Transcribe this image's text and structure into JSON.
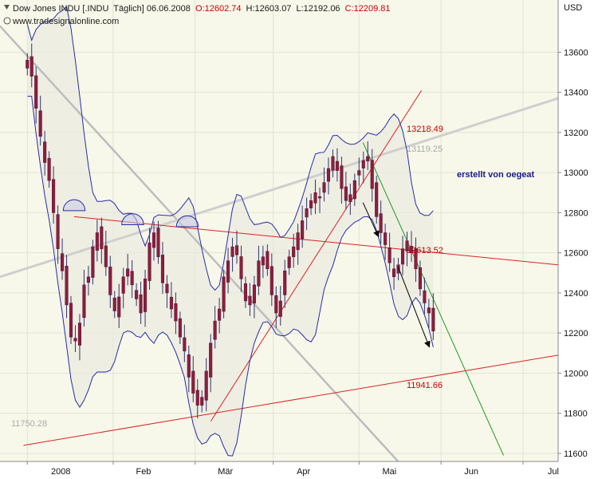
{
  "header": {
    "instrument": "Dow Jones INDU [.INDU",
    "period": "Täglich] 06.06.2008",
    "open": "O:12602.74",
    "high": "H:12603.07",
    "low": "L:12192.06",
    "close": "C:12209.81",
    "website": "www.tradesignalonline.com",
    "open_color": "#cc0000",
    "close_color": "#cc0000"
  },
  "annotation_text": "erstellt von oegeat",
  "annotation_color": "#1a1a8c",
  "chart_data": {
    "type": "candlestick",
    "y_unit": "USD",
    "ylim": [
      11560,
      13860
    ],
    "y_ticks": [
      11600,
      11800,
      12000,
      12200,
      12400,
      12600,
      12800,
      13000,
      13200,
      13400,
      13600
    ],
    "x_months": [
      {
        "label": "2008",
        "day": 0
      },
      {
        "label": "Feb",
        "day": 22
      },
      {
        "label": "Mär",
        "day": 43
      },
      {
        "label": "Apr",
        "day": 63
      },
      {
        "label": "Mai",
        "day": 85
      },
      {
        "label": "Jun",
        "day": 106
      },
      {
        "label": "Jul",
        "day": 127
      }
    ],
    "x_range_days": [
      -7,
      136
    ],
    "price_labels": [
      {
        "text": "13218.49",
        "value": 13218.49,
        "color": "#cc0000"
      },
      {
        "text": "13119.25",
        "value": 13119.25,
        "color": "#aaaaaa"
      },
      {
        "text": "12613.52",
        "value": 12613.52,
        "color": "#cc0000"
      },
      {
        "text": "11941.66",
        "value": 11941.66,
        "color": "#cc0000"
      },
      {
        "text": "11750.28",
        "value": 11750.28,
        "color": "#aaaaaa"
      }
    ],
    "closes": [
      13560,
      13480,
      13320,
      13180,
      13050,
      12960,
      12800,
      12620,
      12510,
      12340,
      12180,
      12160,
      12250,
      12440,
      12480,
      12630,
      12700,
      12620,
      12530,
      12390,
      12310,
      12380,
      12480,
      12520,
      12440,
      12370,
      12300,
      12470,
      12650,
      12700,
      12580,
      12450,
      12400,
      12320,
      12260,
      12180,
      12110,
      11980,
      11900,
      11840,
      11880,
      12010,
      12150,
      12260,
      12320,
      12480,
      12560,
      12630,
      12590,
      12470,
      12360,
      12340,
      12440,
      12560,
      12580,
      12520,
      12390,
      12300,
      12360,
      12510,
      12580,
      12630,
      12700,
      12760,
      12820,
      12860,
      12900,
      12880,
      12950,
      13020,
      13080,
      13010,
      12920,
      12860,
      12890,
      12960,
      13010,
      13060,
      13080,
      12920,
      12780,
      12700,
      12640,
      12550,
      12480,
      12540,
      12620,
      12660,
      12600,
      12520,
      12420,
      12350,
      12300,
      12209.81
    ],
    "lines": [
      {
        "name": "gray-down-trend",
        "color": "#bdbdbd",
        "width": 2.5,
        "x1": -7,
        "y1": 13730,
        "x2": 95,
        "y2": 11560
      },
      {
        "name": "gray-up-trend",
        "color": "#cfcfcf",
        "width": 3,
        "x1": -7,
        "y1": 12480,
        "x2": 136,
        "y2": 13370
      },
      {
        "name": "red-resistance",
        "color": "#dd2222",
        "width": 1,
        "x1": 12,
        "y1": 12780,
        "x2": 136,
        "y2": 12540
      },
      {
        "name": "red-support",
        "color": "#dd2222",
        "width": 1,
        "x1": -1,
        "y1": 11640,
        "x2": 136,
        "y2": 12090
      },
      {
        "name": "red-rising",
        "color": "#dd2222",
        "width": 1,
        "x1": 47,
        "y1": 11760,
        "x2": 101,
        "y2": 13410
      },
      {
        "name": "green-down",
        "color": "#229922",
        "width": 1,
        "x1": 86,
        "y1": 13150,
        "x2": 122,
        "y2": 11590
      }
    ],
    "arrows": [
      {
        "x1": 86,
        "y1": 12850,
        "x2": 90,
        "y2": 12680
      },
      {
        "x1": 95,
        "y1": 12530,
        "x2": 103,
        "y2": 12130
      }
    ],
    "arcs": [
      {
        "x": 12,
        "y": 12810,
        "r": 2.8
      },
      {
        "x": 27,
        "y": 12740,
        "r": 2.8
      },
      {
        "x": 41,
        "y": 12730,
        "r": 2.8
      }
    ]
  }
}
